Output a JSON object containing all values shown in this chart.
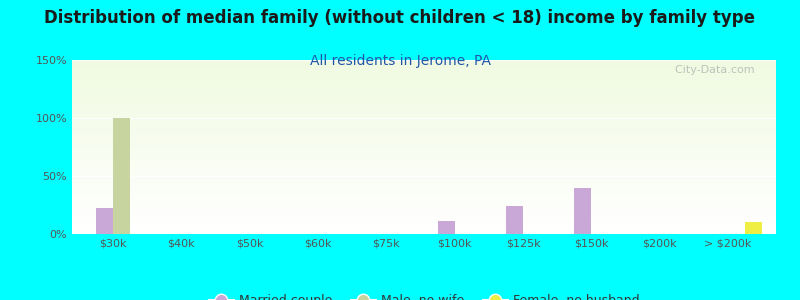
{
  "title": "Distribution of median family (without children < 18) income by family type",
  "subtitle": "All residents in Jerome, PA",
  "background_color": "#00FFFF",
  "categories": [
    "$30k",
    "$40k",
    "$50k",
    "$60k",
    "$75k",
    "$100k",
    "$125k",
    "$150k",
    "$200k",
    "> $200k"
  ],
  "married_couple": [
    22,
    0,
    0,
    0,
    0,
    11,
    24,
    40,
    0,
    0
  ],
  "male_no_wife": [
    100,
    0,
    0,
    0,
    0,
    0,
    0,
    0,
    0,
    0
  ],
  "female_no_husband": [
    0,
    0,
    0,
    0,
    0,
    0,
    0,
    0,
    0,
    10
  ],
  "married_color": "#c9a8d8",
  "male_color": "#c8d4a0",
  "female_color": "#eeee44",
  "ylim": [
    0,
    150
  ],
  "yticks": [
    0,
    50,
    100,
    150
  ],
  "ytick_labels": [
    "0%",
    "50%",
    "100%",
    "150%"
  ],
  "title_fontsize": 12,
  "subtitle_fontsize": 10,
  "watermark": "  City-Data.com"
}
